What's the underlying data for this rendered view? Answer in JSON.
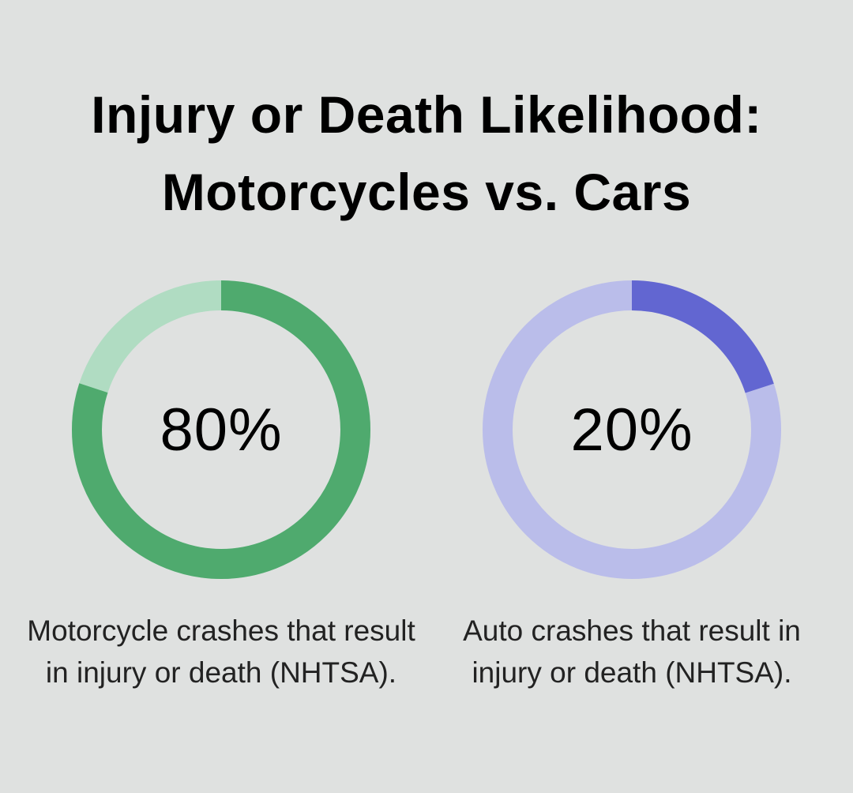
{
  "title": {
    "line1": "Injury or Death Likelihood:",
    "line2": "Motorcycles vs. Cars"
  },
  "chart_data": [
    {
      "type": "pie",
      "values": [
        80,
        20
      ],
      "value_label": "80%",
      "caption": "Motorcycle crashes that result in injury or death (NHTSA).",
      "colors": {
        "fill": "#4faa6e",
        "remainder": "#b0dcc2"
      }
    },
    {
      "type": "pie",
      "values": [
        20,
        80
      ],
      "value_label": "20%",
      "caption": "Auto crashes that result in injury or death (NHTSA).",
      "colors": {
        "fill": "#6266d1",
        "remainder": "#babdea"
      }
    }
  ]
}
